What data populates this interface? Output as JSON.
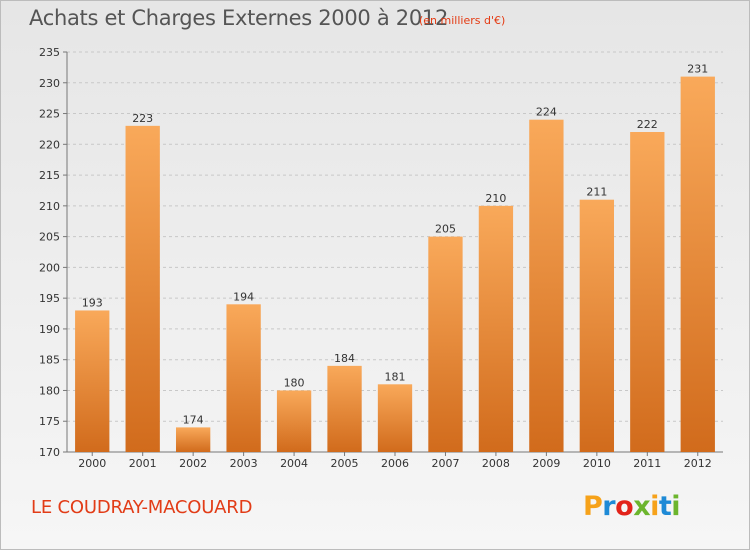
{
  "title": "Achats et Charges Externes 2000 à 2012",
  "subtitle": "(en milliers d'€)",
  "commune": "LE COUDRAY-MACOUARD",
  "brand": {
    "letters": [
      "P",
      "r",
      "o",
      "x",
      "i",
      "t",
      "i"
    ],
    "colors": [
      "#f6a21a",
      "#1e8ad6",
      "#e2231a",
      "#6cb52d",
      "#f6a21a",
      "#1e8ad6",
      "#6cb52d"
    ]
  },
  "colors": {
    "bar_top": "#f9a95a",
    "bar_bottom": "#d16b1c",
    "axis": "#777777",
    "grid": "#c8c8c8",
    "text": "#333333"
  },
  "chart_data": {
    "type": "bar",
    "categories": [
      "2000",
      "2001",
      "2002",
      "2003",
      "2004",
      "2005",
      "2006",
      "2007",
      "2008",
      "2009",
      "2010",
      "2011",
      "2012"
    ],
    "values": [
      193,
      223,
      174,
      194,
      180,
      184,
      181,
      205,
      210,
      224,
      211,
      222,
      231
    ],
    "data_labels": [
      "193",
      "223",
      "174",
      "194",
      "180",
      "184",
      "181",
      "205",
      "210",
      "224",
      "211",
      "222",
      "231"
    ],
    "yticks": [
      170,
      175,
      180,
      185,
      190,
      195,
      200,
      205,
      210,
      215,
      220,
      225,
      230,
      235
    ],
    "ylim": [
      170,
      235
    ],
    "grid": true,
    "title": "Achats et Charges Externes 2000 à 2012",
    "xlabel": "",
    "ylabel": ""
  }
}
